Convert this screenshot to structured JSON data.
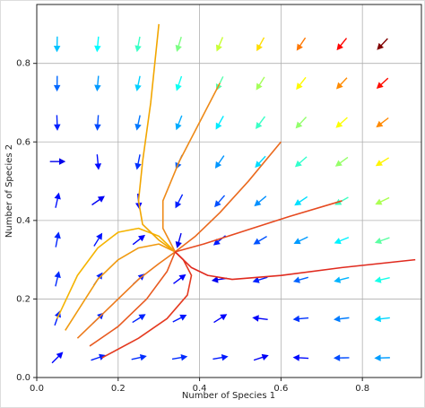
{
  "chart_data": {
    "type": "quiver",
    "xlabel": "Number of Species 1",
    "ylabel": "Number of Species 2",
    "xlim": [
      0,
      0.945
    ],
    "ylim": [
      0,
      0.95
    ],
    "xticks": [
      {
        "value": 0,
        "label": "0.0"
      },
      0.2,
      0.4,
      0.6,
      0.8
    ],
    "yticks": [
      {
        "value": 0,
        "label": "0.0"
      },
      0.2,
      0.4,
      0.6,
      0.8
    ],
    "grid": true,
    "colormap": "jet",
    "field": {
      "x": [
        0.05,
        0.15,
        0.25,
        0.35,
        0.45,
        0.55,
        0.65,
        0.75,
        0.85
      ],
      "y": [
        0.05,
        0.15,
        0.25,
        0.35,
        0.45,
        0.55,
        0.65,
        0.75,
        0.85
      ],
      "u": [
        [
          0.043,
          0.104,
          0.134,
          0.131,
          0.097,
          0.03,
          -0.068,
          -0.199,
          -0.361
        ],
        [
          0.036,
          0.085,
          0.101,
          0.086,
          0.038,
          -0.041,
          -0.153,
          -0.296,
          -0.472
        ],
        [
          0.03,
          0.065,
          0.069,
          0.04,
          -0.02,
          -0.113,
          -0.237,
          -0.394,
          -0.582
        ],
        [
          0.023,
          0.046,
          0.036,
          -0.005,
          -0.079,
          -0.184,
          -0.322,
          -0.491,
          -0.693
        ],
        [
          0.017,
          0.026,
          0.004,
          -0.051,
          -0.137,
          -0.256,
          -0.406,
          -0.589,
          -0.803
        ],
        [
          0.01,
          0.007,
          -0.029,
          -0.096,
          -0.196,
          -0.327,
          -0.491,
          -0.686,
          -0.914
        ],
        [
          0.004,
          -0.013,
          -0.061,
          -0.142,
          -0.254,
          -0.399,
          -0.575,
          -0.784,
          -1.024
        ],
        [
          -0.003,
          -0.032,
          -0.094,
          -0.187,
          -0.313,
          -0.47,
          -0.66,
          -0.881,
          -1.135
        ],
        [
          -0.009,
          -0.052,
          -0.126,
          -0.233,
          -0.371,
          -0.542,
          -0.744,
          -0.979,
          -1.245
        ]
      ],
      "v": [
        [
          0.043,
          0.036,
          0.03,
          0.023,
          0.017,
          0.01,
          0.004,
          -0.003,
          -0.01
        ],
        [
          0.102,
          0.083,
          0.063,
          0.044,
          0.024,
          0.005,
          -0.015,
          -0.035,
          -0.054
        ],
        [
          0.128,
          0.095,
          0.063,
          0.03,
          -0.003,
          -0.035,
          -0.068,
          -0.1,
          -0.133
        ],
        [
          0.119,
          0.074,
          0.028,
          -0.018,
          -0.063,
          -0.109,
          -0.154,
          -0.2,
          -0.245
        ],
        [
          0.077,
          0.018,
          -0.041,
          -0.099,
          -0.158,
          -0.216,
          -0.275,
          -0.333,
          -0.392
        ],
        [
          0.0,
          -0.072,
          -0.143,
          -0.215,
          -0.286,
          -0.358,
          -0.429,
          -0.501,
          -0.572
        ],
        [
          -0.111,
          -0.195,
          -0.28,
          -0.364,
          -0.449,
          -0.533,
          -0.618,
          -0.702,
          -0.787
        ],
        [
          -0.255,
          -0.353,
          -0.45,
          -0.548,
          -0.645,
          -0.743,
          -0.84,
          -0.938,
          -1.035
        ],
        [
          -0.434,
          -0.544,
          -0.655,
          -0.765,
          -0.876,
          -0.986,
          -1.097,
          -1.207,
          -1.318
        ]
      ]
    },
    "series": [
      {
        "color": "#f5b400",
        "x": [
          0.05,
          0.1,
          0.15,
          0.2,
          0.25,
          0.3,
          0.34
        ],
        "y": [
          0.15,
          0.26,
          0.33,
          0.37,
          0.38,
          0.36,
          0.32
        ]
      },
      {
        "color": "#f2a600",
        "x": [
          0.3,
          0.28,
          0.26,
          0.25,
          0.26,
          0.3,
          0.34
        ],
        "y": [
          0.9,
          0.7,
          0.55,
          0.45,
          0.39,
          0.35,
          0.32
        ]
      },
      {
        "color": "#f09a10",
        "x": [
          0.07,
          0.15,
          0.2,
          0.25,
          0.3,
          0.34
        ],
        "y": [
          0.12,
          0.25,
          0.3,
          0.33,
          0.34,
          0.32
        ]
      },
      {
        "color": "#ee8a18",
        "x": [
          0.45,
          0.4,
          0.35,
          0.31,
          0.31,
          0.34
        ],
        "y": [
          0.75,
          0.65,
          0.55,
          0.45,
          0.38,
          0.32
        ]
      },
      {
        "color": "#ec7a1c",
        "x": [
          0.1,
          0.18,
          0.25,
          0.3,
          0.34
        ],
        "y": [
          0.1,
          0.18,
          0.25,
          0.29,
          0.32
        ]
      },
      {
        "color": "#ea6a1e",
        "x": [
          0.6,
          0.52,
          0.45,
          0.39,
          0.34
        ],
        "y": [
          0.6,
          0.5,
          0.42,
          0.36,
          0.32
        ]
      },
      {
        "color": "#e85a20",
        "x": [
          0.13,
          0.2,
          0.27,
          0.32,
          0.34
        ],
        "y": [
          0.08,
          0.13,
          0.2,
          0.27,
          0.32
        ]
      },
      {
        "color": "#e64a20",
        "x": [
          0.75,
          0.62,
          0.5,
          0.41,
          0.34
        ],
        "y": [
          0.45,
          0.41,
          0.37,
          0.34,
          0.32
        ]
      },
      {
        "color": "#e43a20",
        "x": [
          0.16,
          0.25,
          0.32,
          0.37,
          0.38,
          0.36,
          0.34
        ],
        "y": [
          0.05,
          0.1,
          0.15,
          0.21,
          0.26,
          0.3,
          0.32
        ]
      },
      {
        "color": "#e02a1e",
        "x": [
          0.93,
          0.75,
          0.6,
          0.48,
          0.42,
          0.38,
          0.34
        ],
        "y": [
          0.3,
          0.28,
          0.26,
          0.25,
          0.26,
          0.28,
          0.32
        ]
      }
    ]
  }
}
